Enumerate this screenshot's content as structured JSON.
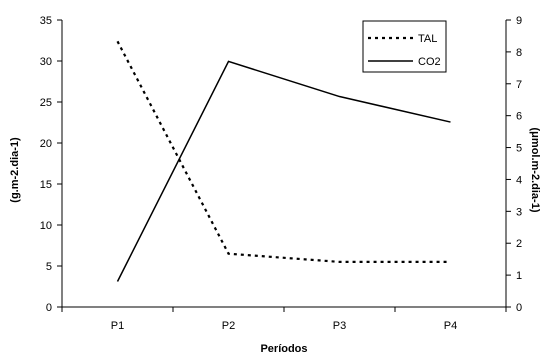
{
  "chart_data": {
    "type": "line",
    "title": "",
    "categories": [
      "P1",
      "P2",
      "P3",
      "P4"
    ],
    "xlabel": "Períodos",
    "ylabel_left": "(g.m-2.dia-1)",
    "ylabel_right": "(μmol.m-2.dia-1)",
    "ylim_left": [
      0,
      35
    ],
    "yticks_left": [
      0,
      5,
      10,
      15,
      20,
      25,
      30,
      35
    ],
    "ylim_right": [
      0,
      9
    ],
    "yticks_right": [
      0,
      1,
      2,
      3,
      4,
      5,
      6,
      7,
      8,
      9
    ],
    "grid": false,
    "legend_position": "top-right",
    "series": [
      {
        "name": "TAL",
        "axis": "left",
        "style": "dotted",
        "color": "#000000",
        "values": [
          32.4,
          6.5,
          5.5,
          5.5
        ]
      },
      {
        "name": "CO2",
        "axis": "right",
        "style": "solid",
        "color": "#000000",
        "values": [
          0.8,
          7.7,
          6.6,
          5.8
        ]
      }
    ]
  }
}
